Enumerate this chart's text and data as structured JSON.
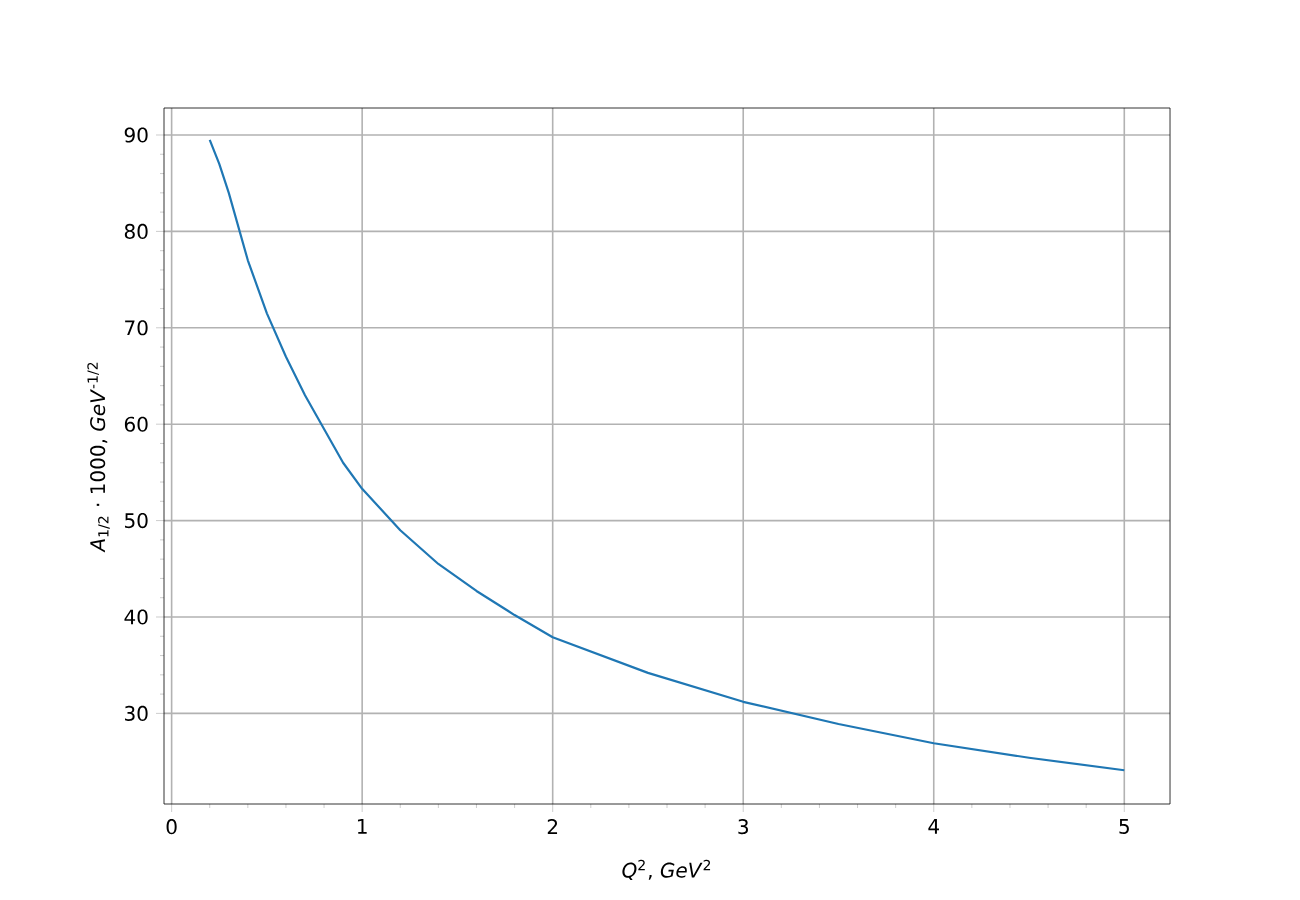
{
  "chart_data": {
    "type": "line",
    "xlabel": "*Q*$^{2}$, *GeV*$^{2}$",
    "ylabel": "*A*$_{1/2}$ · 1000, *GeV*$^{-1/2}$",
    "x": [
      0.2,
      0.25,
      0.3,
      0.4,
      0.5,
      0.6,
      0.7,
      0.8,
      0.9,
      1.0,
      1.2,
      1.4,
      1.6,
      1.8,
      2.0,
      2.5,
      3.0,
      3.5,
      4.0,
      4.5,
      5.0
    ],
    "series": [
      {
        "color": "#1f77b4",
        "values": [
          89.5,
          87,
          84,
          77,
          71.5,
          67,
          63,
          59.5,
          56,
          53.3,
          49,
          45.5,
          42.7,
          40.2,
          37.9,
          34.2,
          31.2,
          28.9,
          26.9,
          25.4,
          24.1
        ]
      }
    ],
    "xlim": [
      -0.04,
      5.24
    ],
    "ylim": [
      20.6,
      92.8
    ],
    "xticks": [
      0,
      1,
      2,
      3,
      4,
      5
    ],
    "yticks": [
      30,
      40,
      50,
      60,
      70,
      80,
      90
    ],
    "grid": true,
    "marker": "none",
    "line_style": "solid"
  }
}
